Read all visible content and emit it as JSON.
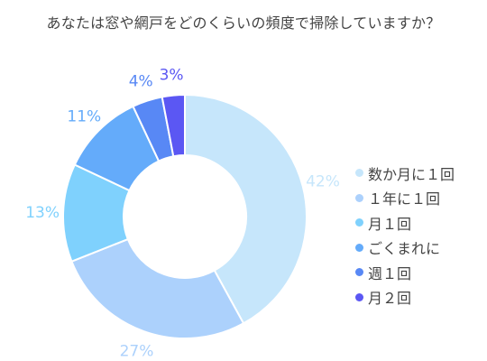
{
  "chart_data": {
    "type": "pie",
    "title": "あなたは窓や網戸をどのくらいの頻度で掃除していますか？",
    "categories": [
      "数か月に１回",
      "１年に１回",
      "月１回",
      "ごくまれに",
      "週１回",
      "月２回"
    ],
    "values": [
      42,
      27,
      13,
      11,
      4,
      3
    ],
    "labels": [
      "42%",
      "27%",
      "13%",
      "11%",
      "4%",
      "3%"
    ],
    "colors": [
      "#c6e6fb",
      "#acd1fc",
      "#7fd1fd",
      "#64abfa",
      "#5888f5",
      "#5b57f3"
    ],
    "legend_position": "right"
  }
}
